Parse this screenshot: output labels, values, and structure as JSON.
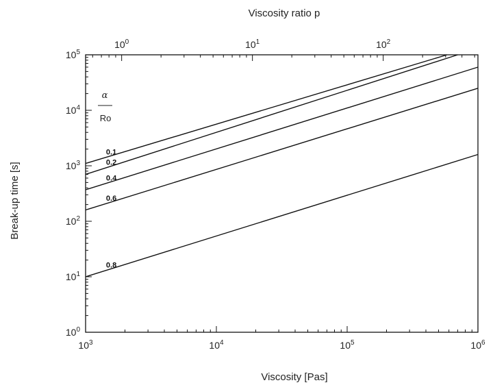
{
  "chart_data": {
    "type": "line",
    "xlabel": "Viscosity [Pas]",
    "ylabel": "Break-up time [s]",
    "x2label": "Viscosity ratio p",
    "xscale": "log",
    "yscale": "log",
    "xlim": [
      1000,
      1000000
    ],
    "ylim": [
      1,
      100000
    ],
    "x2lim": [
      0.53,
      530
    ],
    "x_ticks": [
      {
        "value": 1000,
        "base": "10",
        "exp": "3"
      },
      {
        "value": 10000,
        "base": "10",
        "exp": "4"
      },
      {
        "value": 100000,
        "base": "10",
        "exp": "5"
      },
      {
        "value": 1000000,
        "base": "10",
        "exp": "6"
      }
    ],
    "x2_ticks": [
      {
        "value": 1,
        "base": "10",
        "exp": "0"
      },
      {
        "value": 10,
        "base": "10",
        "exp": "1"
      },
      {
        "value": 100,
        "base": "10",
        "exp": "2"
      }
    ],
    "y_ticks": [
      {
        "value": 1,
        "base": "10",
        "exp": "0"
      },
      {
        "value": 10,
        "base": "10",
        "exp": "1"
      },
      {
        "value": 100,
        "base": "10",
        "exp": "2"
      },
      {
        "value": 1000,
        "base": "10",
        "exp": "3"
      },
      {
        "value": 10000,
        "base": "10",
        "exp": "4"
      },
      {
        "value": 100000,
        "base": "10",
        "exp": "5"
      }
    ],
    "legend": {
      "symbol": "α",
      "denominator": "Ro",
      "position": "top-left"
    },
    "grid": false,
    "series": [
      {
        "label": "0.1",
        "x": [
          1000,
          580000
        ],
        "y": [
          1100,
          100000
        ]
      },
      {
        "label": "0.2",
        "x": [
          1000,
          700000
        ],
        "y": [
          700,
          100000
        ]
      },
      {
        "label": "0.4",
        "x": [
          1000,
          1000000
        ],
        "y": [
          370,
          60000
        ]
      },
      {
        "label": "0.6",
        "x": [
          1000,
          1000000
        ],
        "y": [
          160,
          25000
        ]
      },
      {
        "label": "0.8",
        "x": [
          1000,
          1000000
        ],
        "y": [
          10,
          1600
        ]
      }
    ]
  }
}
